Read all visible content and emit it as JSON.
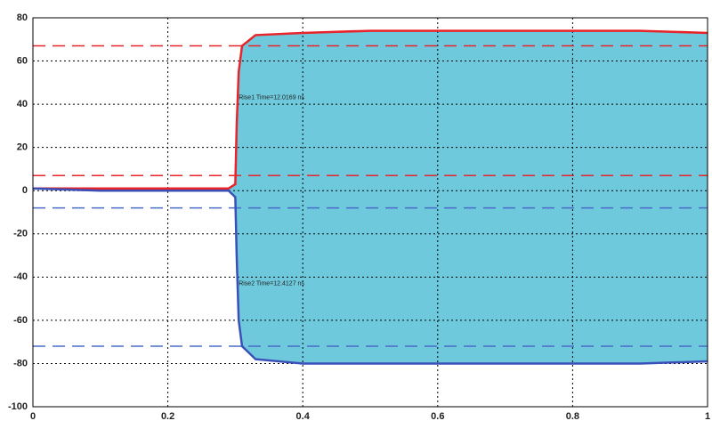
{
  "chart_data": {
    "type": "line",
    "x": [
      0,
      0.1,
      0.2,
      0.29,
      0.3,
      0.302,
      0.305,
      0.31,
      0.33,
      0.4,
      0.5,
      0.6,
      0.7,
      0.8,
      0.9,
      1
    ],
    "series": [
      {
        "name": "Rise1",
        "color": "#e8242a",
        "values": [
          1,
          1,
          1,
          1,
          3,
          30,
          55,
          67,
          72,
          73,
          74,
          74,
          74,
          74,
          74,
          73
        ]
      },
      {
        "name": "Rise2",
        "color": "#3a4fb8",
        "values": [
          1,
          0,
          0,
          0,
          -3,
          -30,
          -60,
          -72,
          -78,
          -80,
          -80,
          -80,
          -80,
          -80,
          -80,
          -79
        ]
      }
    ],
    "fill_between_color": "#6ec9dc",
    "hlines": [
      {
        "value": 67,
        "color": "#e8242a"
      },
      {
        "value": 7,
        "color": "#e8242a"
      },
      {
        "value": -8,
        "color": "#4a6cc8"
      },
      {
        "value": -72,
        "color": "#4a6cc8"
      }
    ],
    "annotations": [
      {
        "text": "Rise1 Time=12.0169 ns",
        "x": 0.305,
        "y": 43
      },
      {
        "text": "Rise2 Time=12.4127 ns",
        "x": 0.305,
        "y": -43
      }
    ],
    "xlim": [
      0,
      1
    ],
    "xticks": [
      0,
      0.2,
      0.4,
      0.6,
      0.8,
      1
    ],
    "ylim": [
      -100,
      80
    ],
    "yticks": [
      -100,
      -80,
      -60,
      -40,
      -20,
      0,
      20,
      40,
      60,
      80
    ],
    "grid": true
  }
}
